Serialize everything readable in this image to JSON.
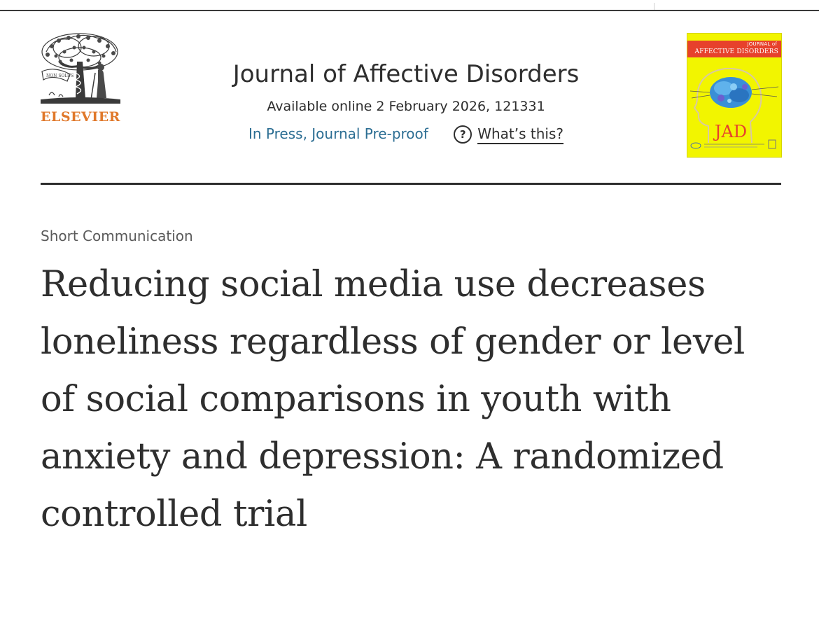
{
  "publisher": {
    "name": "ELSEVIER",
    "logo_icon": "elsevier-tree-logo"
  },
  "journal": {
    "title": "Journal of Affective Disorders",
    "availability": "Available online 2 February 2026, 121331",
    "status": "In Press, Journal Pre-proof",
    "help_icon": "?",
    "help_link": "What’s this?",
    "cover": {
      "banner_top": "JOURNAL of",
      "banner_main": "AFFECTIVE DISORDERS",
      "monogram": "JAD",
      "background_color": "#f2f500",
      "banner_color": "#e7412c"
    }
  },
  "article": {
    "type": "Short Communication",
    "title": "Reducing social media use decreases loneliness regardless of gender or level of social comparisons in youth with anxiety and depression: A randomized controlled trial"
  },
  "colors": {
    "publisher_orange": "#e0782a",
    "status_blue": "#2c6e93",
    "text": "#2e2e2e"
  }
}
